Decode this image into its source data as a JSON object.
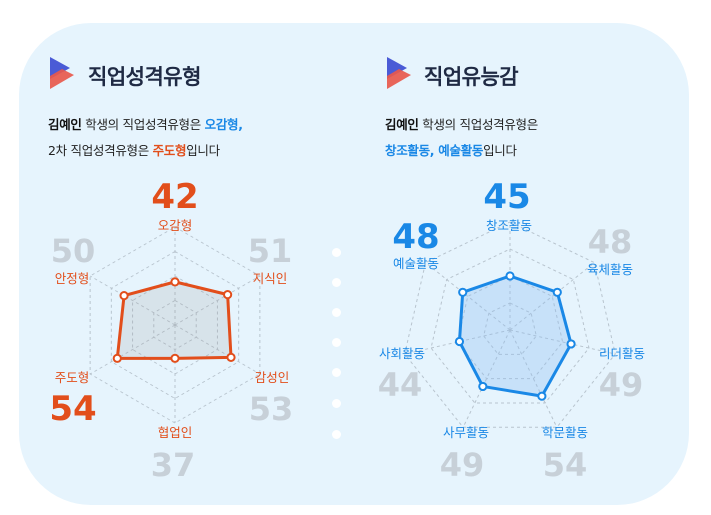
{
  "sections": [
    {
      "title": "직업성격유형",
      "desc_name": "김예인",
      "desc_text1": " 학생의 직업성격유형은 ",
      "desc_highlight1": "오감형,",
      "desc_text2": "2차 직업성격유형은 ",
      "desc_highlight2": "주도형",
      "desc_text3": "입니다"
    },
    {
      "title": "직업유능감",
      "desc_name": "김예인",
      "desc_text1": " 학생의 직업성격유형은",
      "desc_highlight1": "창조활동, 예술활동",
      "desc_text2": "입니다"
    }
  ],
  "colors": {
    "card_bg": "#e6f4fd",
    "orange": "#e24e1b",
    "blue": "#1a88e6",
    "grey_value": "#c7d0d8",
    "logo_red": "#e8584c",
    "logo_blue": "#4a5bd6"
  },
  "chart_data": [
    {
      "type": "radar",
      "title": "직업성격유형",
      "categories": [
        "오감형",
        "지식인",
        "감성인",
        "협업인",
        "주도형",
        "안정형"
      ],
      "values": [
        42,
        51,
        53,
        37,
        54,
        50
      ],
      "highlighted": [
        "오감형",
        "주도형"
      ],
      "color": "#e24e1b"
    },
    {
      "type": "radar",
      "title": "직업유능감",
      "categories": [
        "창조활동",
        "육체활동",
        "리더활동",
        "학문활동",
        "사무활동",
        "사회활동",
        "예술활동"
      ],
      "values": [
        45,
        48,
        49,
        54,
        49,
        44,
        48
      ],
      "highlighted": [
        "창조활동",
        "예술활동"
      ],
      "color": "#1a88e6"
    }
  ]
}
